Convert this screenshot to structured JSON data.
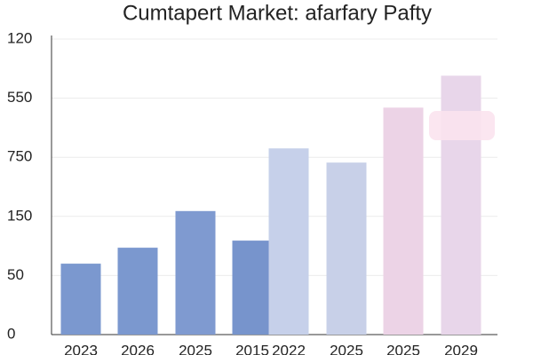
{
  "chart_data": {
    "type": "bar",
    "title": "Cumtapert Market: afarfary Pafty",
    "categories": [
      "2023",
      "2026",
      "2025",
      "2015",
      "2022",
      "2025",
      "2025",
      "2029"
    ],
    "values": [
      1.2,
      1.47,
      2.09,
      1.59,
      3.15,
      2.91,
      3.84,
      4.38
    ],
    "colors": [
      "#7b98cf",
      "#7b98cf",
      "#7f9ad0",
      "#7794cc",
      "#c6d0ea",
      "#c8d0e8",
      "#ecd3e6",
      "#e8d6ea"
    ],
    "ylim": [
      0,
      5
    ],
    "yticks": [
      0,
      {
        "value": 1,
        "label": "50"
      },
      {
        "value": 2,
        "label": "150"
      },
      {
        "value": 3,
        "label": "750"
      },
      {
        "value": 4,
        "label": "550"
      },
      {
        "value": 5,
        "label": "120"
      }
    ],
    "grid": true
  }
}
